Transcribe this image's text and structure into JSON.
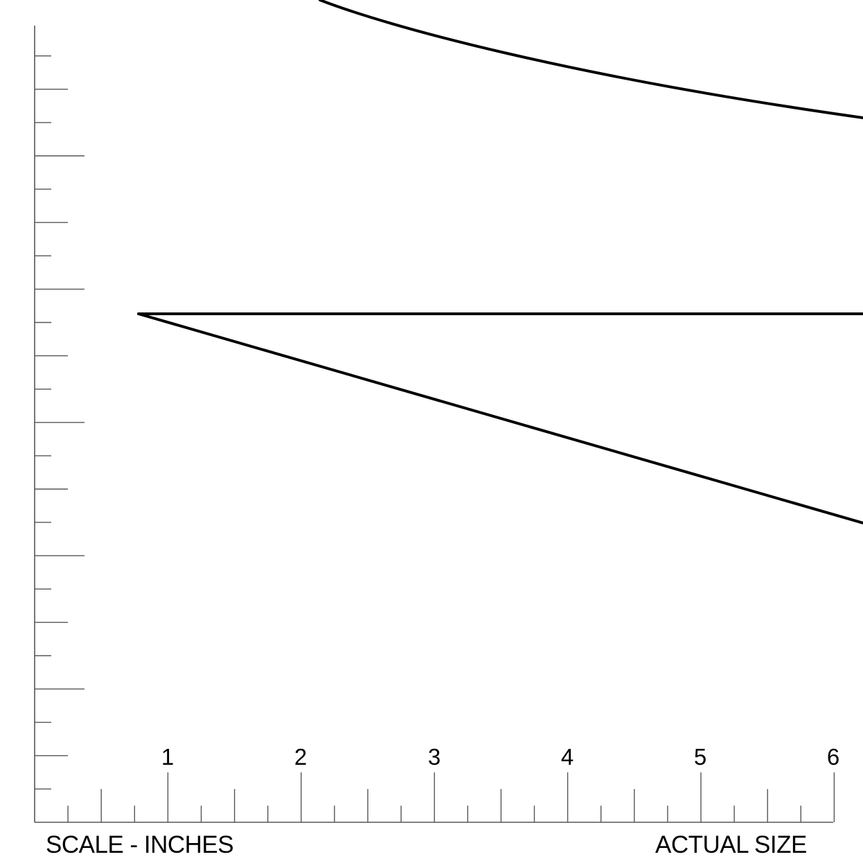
{
  "scale": {
    "unit_label": "SCALE - INCHES",
    "actual_size_label": "ACTUAL SIZE",
    "numbers": [
      "1",
      "2",
      "3",
      "4",
      "5",
      "6"
    ]
  }
}
